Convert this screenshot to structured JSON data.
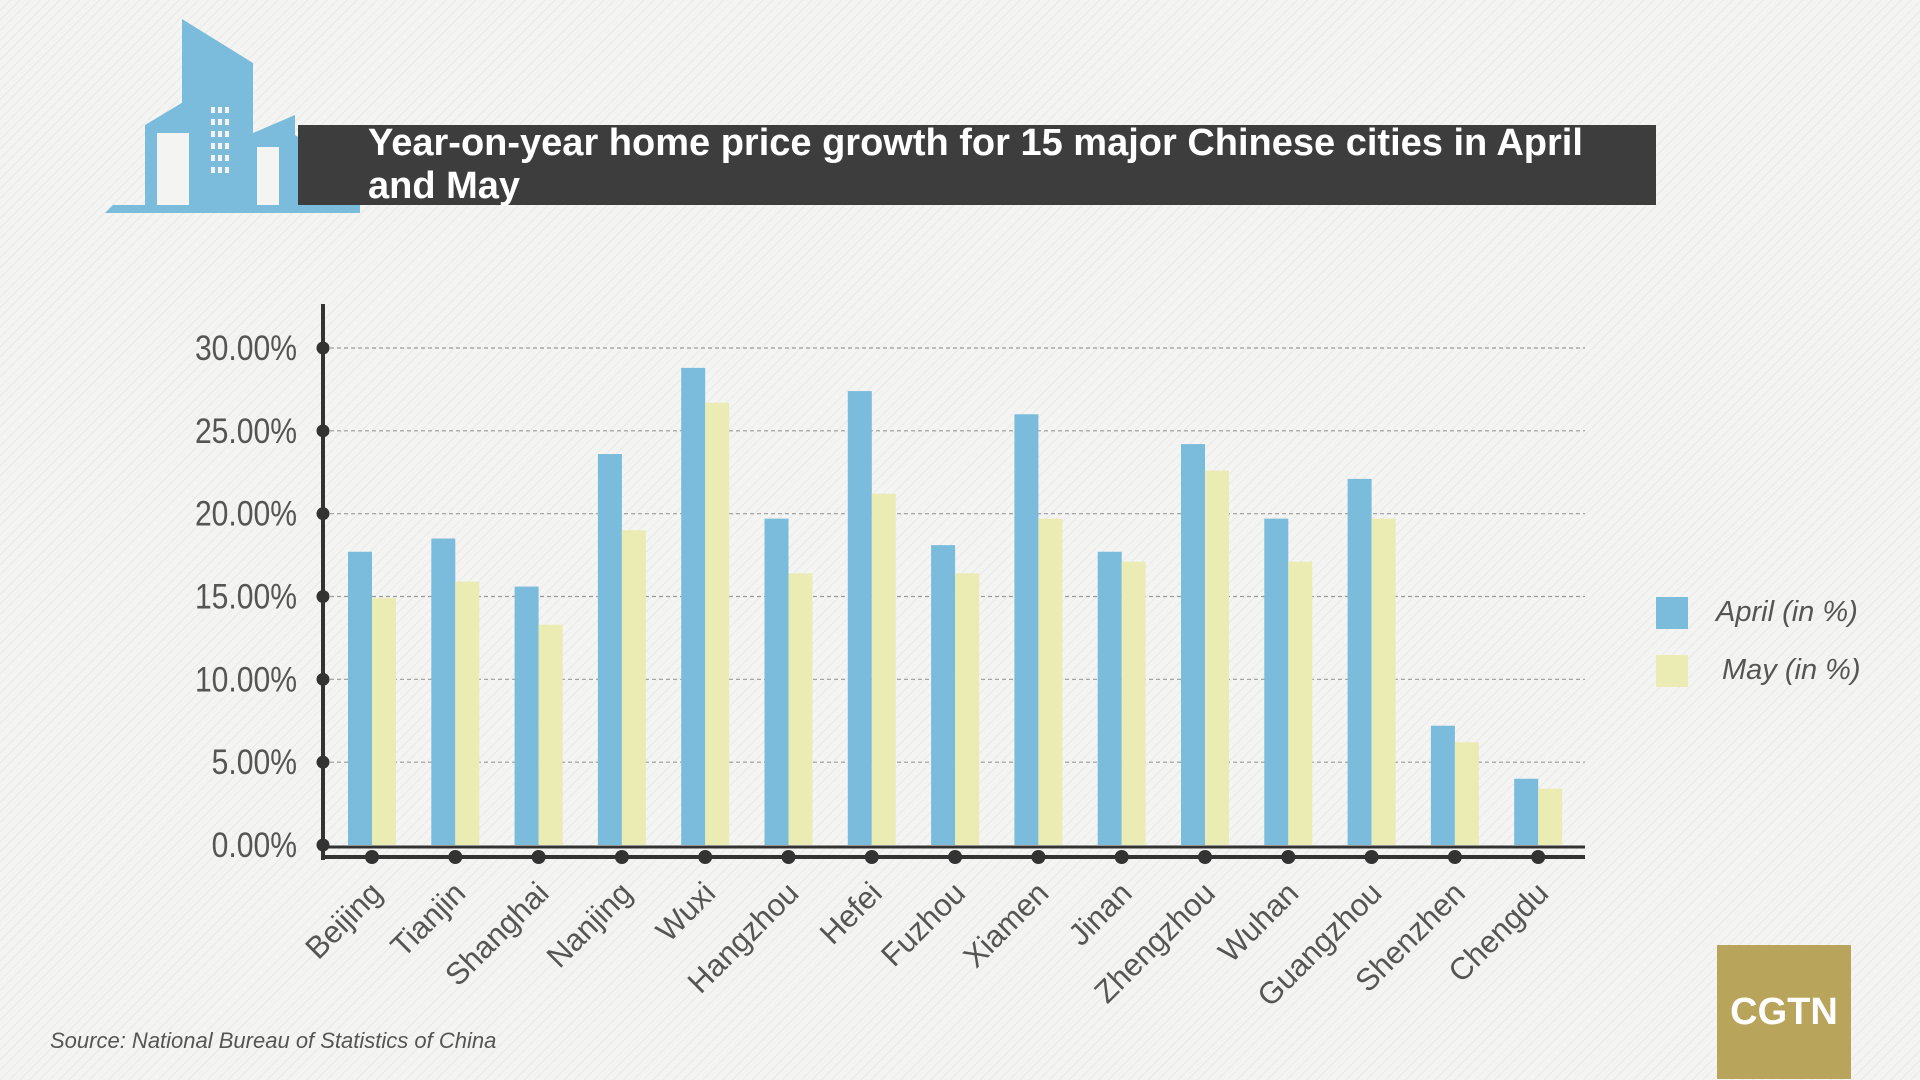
{
  "title": "Year-on-year home price growth for 15 major Chinese cities in April and May",
  "source": "Source: National Bureau of Statistics of China",
  "logo_text": "CGTN",
  "colors": {
    "april": "#7bbcdc",
    "may": "#ebebb4",
    "axis": "#333333",
    "grid": "#9a9a9a",
    "title_bg": "#3d3d3d",
    "building": "#7bbcdc",
    "logo_bg": "#b9a45c"
  },
  "legend": [
    {
      "label": "April (in %)",
      "color": "#7bbcdc"
    },
    {
      "label": "May (in %)",
      "color": "#ebebb4"
    }
  ],
  "chart_data": {
    "type": "bar",
    "categories": [
      "Beijing",
      "Tianjin",
      "Shanghai",
      "Nanjing",
      "Wuxi",
      "Hangzhou",
      "Hefei",
      "Fuzhou",
      "Xiamen",
      "Jinan",
      "Zhengzhou",
      "Wuhan",
      "Guangzhou",
      "Shenzhen",
      "Chengdu"
    ],
    "series": [
      {
        "name": "April (in %)",
        "values": [
          17.7,
          18.5,
          15.6,
          23.6,
          28.8,
          19.7,
          27.4,
          18.1,
          26.0,
          17.7,
          24.2,
          19.7,
          22.1,
          7.2,
          4.0
        ]
      },
      {
        "name": "May (in %)",
        "values": [
          14.9,
          15.9,
          13.3,
          19.0,
          26.7,
          16.4,
          21.2,
          16.4,
          19.7,
          17.1,
          22.6,
          17.1,
          19.7,
          6.2,
          3.4
        ]
      }
    ],
    "yticks": [
      "0.00%",
      "5.00%",
      "10.00%",
      "15.00%",
      "20.00%",
      "25.00%",
      "30.00%"
    ],
    "ylim": [
      0,
      30
    ],
    "grid": true,
    "legend_position": "right"
  }
}
